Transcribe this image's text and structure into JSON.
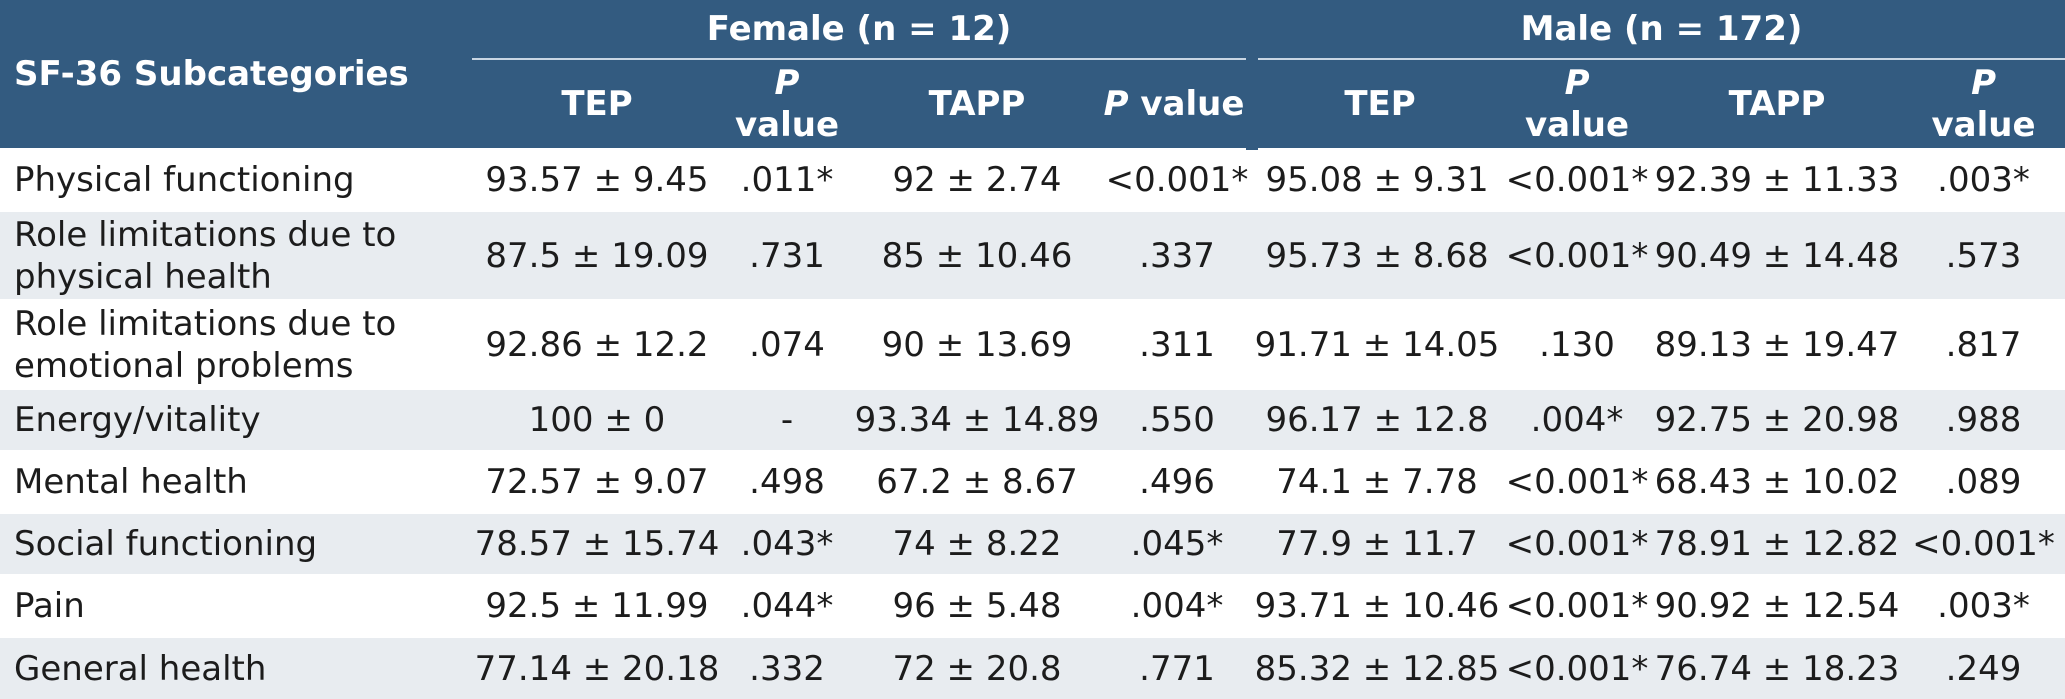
{
  "header": {
    "corner_label": "SF-36 Subcategories",
    "groups": [
      {
        "label": "Female  (n = 12)"
      },
      {
        "label": "Male  (n = 172)"
      }
    ],
    "subcolumns": [
      {
        "label": "TEP"
      },
      {
        "p_label": "P",
        "rest_label": "value"
      },
      {
        "label": "TAPP"
      },
      {
        "p_label": "P",
        "rest_label": " value"
      },
      {
        "label": "TEP"
      },
      {
        "p_label": "P",
        "rest_label": "value"
      },
      {
        "label": "TAPP"
      },
      {
        "p_label": "P",
        "rest_label": "value"
      }
    ]
  },
  "rows": [
    {
      "label": "Physical functioning",
      "cells": [
        "93.57 ± 9.45",
        ".011*",
        "92 ± 2.74",
        "<0.001*",
        "95.08 ± 9.31",
        "<0.001*",
        "92.39 ± 11.33",
        ".003*"
      ]
    },
    {
      "label": "Role limitations due to physical health",
      "cells": [
        "87.5 ± 19.09",
        ".731",
        "85 ± 10.46",
        ".337",
        "95.73 ± 8.68",
        "<0.001*",
        "90.49 ± 14.48",
        ".573"
      ]
    },
    {
      "label": "Role limitations due to emotional problems",
      "cells": [
        "92.86 ± 12.2",
        ".074",
        "90 ± 13.69",
        ".311",
        "91.71 ± 14.05",
        ".130",
        "89.13 ± 19.47",
        ".817"
      ]
    },
    {
      "label": "Energy/vitality",
      "cells": [
        "100 ± 0",
        "-",
        "93.34 ± 14.89",
        ".550",
        "96.17 ± 12.8",
        ".004*",
        "92.75 ± 20.98",
        ".988"
      ]
    },
    {
      "label": "Mental health",
      "cells": [
        "72.57 ± 9.07",
        ".498",
        "67.2 ± 8.67",
        ".496",
        "74.1 ± 7.78",
        "<0.001*",
        "68.43 ± 10.02",
        ".089"
      ]
    },
    {
      "label": "Social functioning",
      "cells": [
        "78.57 ± 15.74",
        ".043*",
        "74 ± 8.22",
        ".045*",
        "77.9 ± 11.7",
        "<0.001*",
        "78.91 ± 12.82",
        "<0.001*"
      ]
    },
    {
      "label": "Pain",
      "cells": [
        "92.5 ± 11.99",
        ".044*",
        "96 ± 5.48",
        ".004*",
        "93.71 ± 10.46",
        "<0.001*",
        "90.92 ± 12.54",
        ".003*"
      ]
    },
    {
      "label": "General health",
      "cells": [
        "77.14 ± 20.18",
        ".332",
        "72 ± 20.8",
        ".771",
        "85.32 ± 12.85",
        "<0.001*",
        "76.74 ± 18.23",
        ".249"
      ]
    }
  ]
}
